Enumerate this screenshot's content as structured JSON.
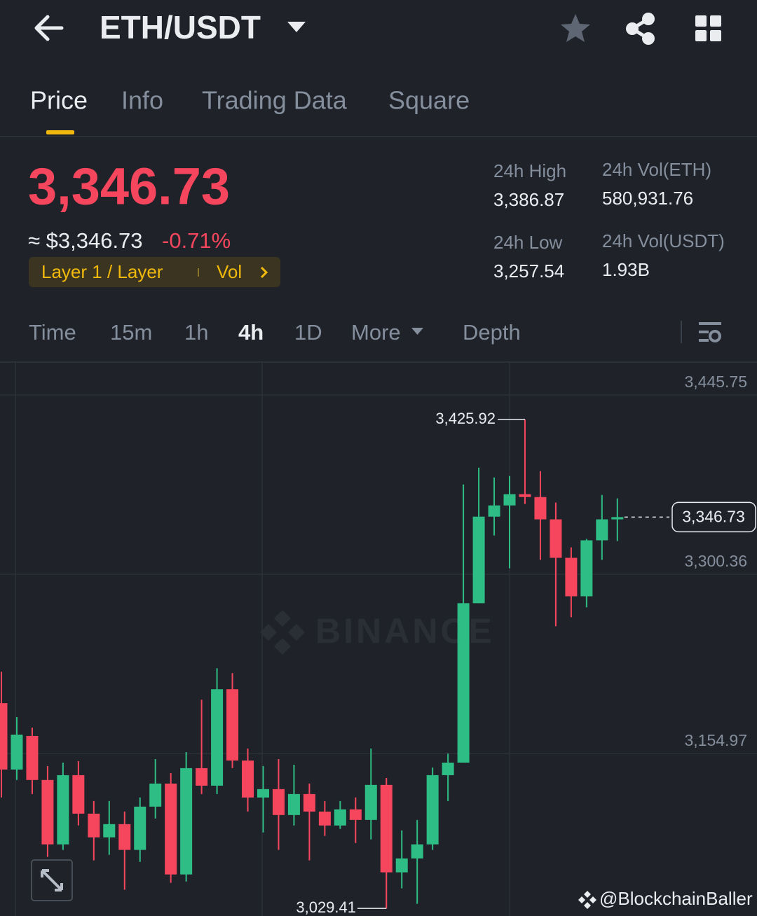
{
  "header": {
    "pair": "ETH/USDT"
  },
  "tabs": [
    "Price",
    "Info",
    "Trading Data",
    "Square"
  ],
  "price": {
    "last": "3,346.73",
    "fiat": "≈ $3,346.73",
    "change": "-0.71%",
    "tag": "Layer 1 / Layer",
    "tag_link": "Vol"
  },
  "stats": [
    {
      "label": "24h High",
      "value": "3,386.87"
    },
    {
      "label": "24h Low",
      "value": "3,257.54"
    },
    {
      "label": "24h Vol(ETH)",
      "value": "580,931.76"
    },
    {
      "label": "24h Vol(USDT)",
      "value": "1.93B"
    }
  ],
  "intervals": [
    "Time",
    "15m",
    "1h",
    "4h",
    "1D",
    "More",
    "Depth"
  ],
  "chart_data": {
    "type": "candlestick",
    "open": [
      3195.8,
      3142.0,
      3169.2,
      3133.5,
      3081.3,
      3137.4,
      3106.2,
      3087.0,
      3097.7,
      3076.8,
      3111.9,
      3130.6,
      3056.9,
      3143.1,
      3128.9,
      3207.1,
      3149.3,
      3119.3,
      3126.1,
      3105.1,
      3122.1,
      3107.9,
      3096.6,
      3109.7,
      3101.1,
      3129.5,
      3058.6,
      3069.9,
      3081.3,
      3137.4,
      3147.6,
      3276.9,
      3347.1,
      3356.2,
      3365.3,
      3363.0,
      3344.9,
      3313.7,
      3282.5,
      3327.9,
      3344.9
    ],
    "high": [
      3221.3,
      3184.5,
      3176.0,
      3144.8,
      3147.6,
      3148.8,
      3116.4,
      3116.4,
      3107.9,
      3119.3,
      3150.4,
      3139.1,
      3156.1,
      3198.6,
      3224.1,
      3220.2,
      3159.0,
      3144.8,
      3150.4,
      3145.9,
      3130.6,
      3116.4,
      3116.4,
      3119.3,
      3159.0,
      3135.1,
      3092.6,
      3101.1,
      3143.6,
      3155.0,
      3373.2,
      3386.8,
      3378.9,
      3380.0,
      3425.92,
      3384.0,
      3358.5,
      3322.2,
      3329.0,
      3364.7,
      3361.9
    ],
    "low": [
      3119.3,
      3133.5,
      3122.1,
      3071.1,
      3076.8,
      3096.6,
      3068.3,
      3072.8,
      3044.5,
      3067.1,
      3102.3,
      3050.1,
      3051.2,
      3122.1,
      3122.1,
      3143.1,
      3107.9,
      3090.9,
      3076.8,
      3096.6,
      3068.3,
      3088.1,
      3093.8,
      3082.4,
      3085.3,
      3029.41,
      3045.6,
      3033.1,
      3076.8,
      3116.4,
      3147.6,
      3276.9,
      3331.8,
      3305.2,
      3357.4,
      3312.0,
      3258.2,
      3265.5,
      3273.5,
      3312.0,
      3327.3
    ],
    "close": [
      3142.0,
      3170.3,
      3133.5,
      3081.3,
      3137.4,
      3106.2,
      3087.0,
      3097.7,
      3076.8,
      3111.9,
      3130.6,
      3056.9,
      3143.1,
      3128.9,
      3207.1,
      3149.3,
      3119.3,
      3126.1,
      3105.1,
      3122.1,
      3107.9,
      3096.6,
      3109.7,
      3101.1,
      3129.5,
      3058.6,
      3069.9,
      3081.3,
      3137.4,
      3147.6,
      3276.9,
      3347.1,
      3356.2,
      3365.3,
      3363.0,
      3344.9,
      3313.7,
      3282.5,
      3327.9,
      3344.9,
      3346.73
    ],
    "ylim": [
      3023.2,
      3471.9
    ],
    "yticks": [
      {
        "value": 3445.75,
        "label": "3,445.75"
      },
      {
        "value": 3300.36,
        "label": "3,300.36"
      },
      {
        "value": 3154.97,
        "label": "3,154.97"
      }
    ],
    "grid": true,
    "up_color": "#2ebd85",
    "down_color": "#f6465d",
    "high_label": {
      "value": 3425.92,
      "label": "3,425.92"
    },
    "low_label": {
      "value": 3029.41,
      "label": "3,029.41"
    },
    "last_label": {
      "value": 3346.73,
      "label": "3,346.73"
    }
  },
  "watermark": "BINANCE",
  "credit": "@BlockchainBaller"
}
